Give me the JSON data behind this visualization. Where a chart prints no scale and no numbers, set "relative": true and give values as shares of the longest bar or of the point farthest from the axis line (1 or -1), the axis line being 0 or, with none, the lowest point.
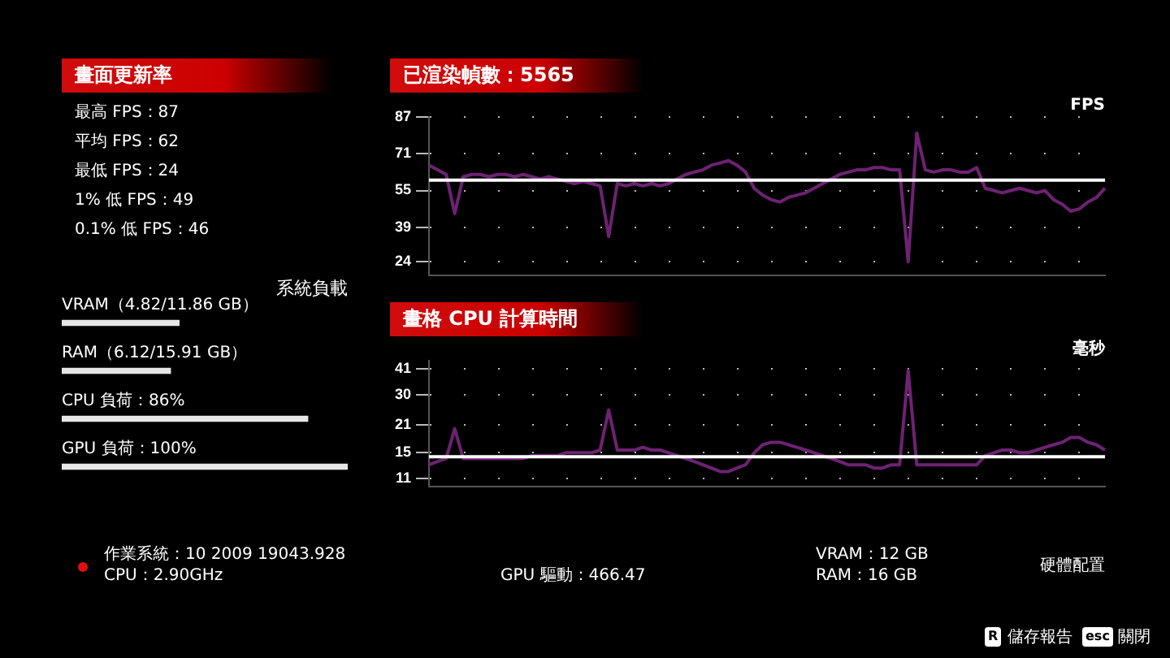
{
  "chart_data": [
    {
      "type": "other",
      "title": "畫面更新率",
      "annotations": [
        "最高 FPS：87",
        "平均 FPS：62",
        "最低 FPS：24",
        "1% 低 FPS：49",
        "0.1% 低 FPS：46"
      ]
    },
    {
      "type": "bar",
      "orientation": "horizontal",
      "relative": true,
      "title": "系統負載",
      "color": "#e6e6e6",
      "categories": [
        "VRAM（4.82/11.86 GB）",
        "RAM（6.12/15.91 GB）",
        "CPU 負荷：86%",
        "GPU 負荷：100%"
      ],
      "values": [
        0.41,
        0.38,
        0.86,
        1
      ]
    },
    {
      "type": "line",
      "title": "已渲染幀數：5565",
      "ylabel": "FPS",
      "ylim": [
        18,
        87
      ],
      "yticks": [
        24,
        39,
        55,
        71,
        87
      ],
      "grid": "y",
      "categories": [
        null,
        null,
        null,
        null,
        null,
        null,
        null,
        null,
        null,
        null,
        null,
        null,
        null,
        null,
        null,
        null,
        null,
        null,
        null,
        null,
        null,
        null,
        null,
        null,
        null,
        null,
        null,
        null,
        null,
        null,
        null,
        null,
        null,
        null,
        null,
        null,
        null,
        null,
        null,
        null,
        null,
        null,
        null,
        null,
        null,
        null,
        null,
        null,
        null,
        null,
        null,
        null,
        null,
        null,
        null,
        null,
        null,
        null,
        null,
        null,
        null,
        null,
        null,
        null,
        null,
        null,
        null,
        null,
        null,
        null,
        null,
        null,
        null,
        null,
        null,
        null,
        null,
        null,
        null,
        null
      ],
      "series": [
        {
          "color": "#6e2273",
          "values": [
            66,
            64,
            62,
            45,
            61,
            62,
            62,
            61,
            62,
            62,
            61,
            62,
            61,
            60,
            61,
            60,
            59,
            58,
            59,
            58,
            57,
            35,
            58,
            57,
            58,
            57,
            58,
            57,
            58,
            60,
            62,
            63,
            64,
            66,
            67,
            68,
            66,
            63,
            56,
            53,
            51,
            50,
            52,
            53,
            54,
            56,
            58,
            60,
            62,
            63,
            64,
            64,
            65,
            65,
            64,
            64,
            24,
            80,
            64,
            63,
            64,
            64,
            63,
            63,
            65,
            56,
            55,
            54,
            55,
            56,
            55,
            54,
            55,
            51,
            49,
            46,
            47,
            50,
            52,
            56
          ]
        }
      ],
      "ref_lines": [
        {
          "axis": "y",
          "value": 59.5,
          "color": "#ffffff"
        }
      ]
    },
    {
      "type": "line",
      "title": "畫格 CPU 計算時間",
      "ylabel": "毫秒",
      "log": "y",
      "ylim": [
        10,
        45
      ],
      "yticks": [
        11,
        15,
        21,
        30,
        41
      ],
      "grid": "y",
      "categories": [
        null,
        null,
        null,
        null,
        null,
        null,
        null,
        null,
        null,
        null,
        null,
        null,
        null,
        null,
        null,
        null,
        null,
        null,
        null,
        null,
        null,
        null,
        null,
        null,
        null,
        null,
        null,
        null,
        null,
        null,
        null,
        null,
        null,
        null,
        null,
        null,
        null,
        null,
        null,
        null,
        null,
        null,
        null,
        null,
        null,
        null,
        null,
        null,
        null,
        null,
        null,
        null,
        null,
        null,
        null,
        null,
        null,
        null,
        null,
        null,
        null,
        null,
        null,
        null,
        null,
        null,
        null,
        null,
        null,
        null,
        null,
        null,
        null,
        null,
        null,
        null,
        null,
        null,
        null,
        null
      ],
      "series": [
        {
          "color": "#6e2273",
          "values": [
            13,
            13.5,
            14,
            20,
            14,
            14,
            14,
            14,
            14,
            14,
            14,
            14,
            14.5,
            14.5,
            14.5,
            14.5,
            15,
            15,
            15,
            15,
            15.5,
            25,
            15.5,
            15.5,
            15.5,
            16,
            15.5,
            15.5,
            15,
            14.5,
            14,
            13.5,
            13,
            12.5,
            12,
            12,
            12.5,
            13,
            15,
            16.5,
            17,
            17,
            16.5,
            16,
            15.5,
            15,
            14.5,
            14,
            13.5,
            13,
            13,
            13,
            12.5,
            12.5,
            13,
            13,
            40,
            13,
            13,
            13,
            13,
            13,
            13,
            13,
            13,
            14.5,
            15,
            15.5,
            15.5,
            15,
            15,
            15.5,
            16,
            16.5,
            17,
            18,
            18,
            17,
            16.5,
            15.5
          ]
        }
      ],
      "ref_lines": [
        {
          "axis": "y",
          "value": 14.3,
          "color": "#ffffff"
        }
      ]
    },
    {
      "type": "other",
      "annotations": [
        "作業系統：10 2009 19043.928",
        "CPU：2.90GHz",
        "GPU 驅動：466.47",
        "VRAM：12 GB",
        "RAM：16 GB",
        "硬體配置",
        "R",
        "儲存報告",
        "esc",
        "關閉"
      ]
    }
  ]
}
